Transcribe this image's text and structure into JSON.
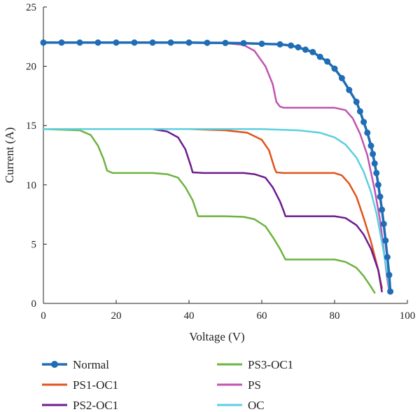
{
  "chart_data": {
    "type": "line",
    "title": "",
    "xlabel": "Voltage (V)",
    "ylabel": "Current (A)",
    "xlim": [
      0,
      100
    ],
    "ylim": [
      0,
      25
    ],
    "xticks": [
      "0",
      "20",
      "40",
      "60",
      "80",
      "100"
    ],
    "yticks": [
      "0",
      "5",
      "10",
      "15",
      "20",
      "25"
    ],
    "grid": false,
    "legend_position": "bottom",
    "series": [
      {
        "name": "Normal",
        "color": "#1f6db5",
        "marker": "circle",
        "points": [
          [
            0,
            22.0
          ],
          [
            5,
            22.0
          ],
          [
            10,
            22.0
          ],
          [
            15,
            22.0
          ],
          [
            20,
            22.0
          ],
          [
            25,
            22.0
          ],
          [
            30,
            22.0
          ],
          [
            35,
            22.0
          ],
          [
            40,
            22.0
          ],
          [
            45,
            21.98
          ],
          [
            50,
            21.97
          ],
          [
            55,
            21.95
          ],
          [
            60,
            21.9
          ],
          [
            65,
            21.85
          ],
          [
            68,
            21.75
          ],
          [
            70,
            21.6
          ],
          [
            72,
            21.4
          ],
          [
            74,
            21.2
          ],
          [
            76,
            20.8
          ],
          [
            78,
            20.4
          ],
          [
            80,
            19.8
          ],
          [
            82,
            19.0
          ],
          [
            84,
            18.0
          ],
          [
            86,
            17.0
          ],
          [
            87,
            16.2
          ],
          [
            88,
            15.3
          ],
          [
            89,
            14.4
          ],
          [
            90,
            13.3
          ],
          [
            90.5,
            12.6
          ],
          [
            91,
            11.8
          ],
          [
            91.5,
            11.0
          ],
          [
            92,
            10.0
          ],
          [
            92.5,
            9.0
          ],
          [
            93,
            7.9
          ],
          [
            93.5,
            6.7
          ],
          [
            94,
            5.3
          ],
          [
            94.5,
            3.9
          ],
          [
            95,
            2.4
          ],
          [
            95.3,
            1.0
          ]
        ]
      },
      {
        "name": "PS1-OC1",
        "color": "#e0541c",
        "marker": "none",
        "points": [
          [
            0,
            14.7
          ],
          [
            40,
            14.7
          ],
          [
            50,
            14.6
          ],
          [
            56,
            14.4
          ],
          [
            60,
            13.8
          ],
          [
            62,
            12.9
          ],
          [
            63.5,
            11.4
          ],
          [
            64,
            11.05
          ],
          [
            66,
            11.0
          ],
          [
            80,
            11.0
          ],
          [
            82,
            10.8
          ],
          [
            84,
            10.1
          ],
          [
            86,
            9.0
          ],
          [
            88,
            7.2
          ],
          [
            90,
            5.2
          ],
          [
            92,
            2.8
          ],
          [
            93,
            1.3
          ]
        ]
      },
      {
        "name": "PS2-OC1",
        "color": "#6e1c8f",
        "marker": "none",
        "points": [
          [
            0,
            14.7
          ],
          [
            30,
            14.7
          ],
          [
            34,
            14.5
          ],
          [
            37,
            14.0
          ],
          [
            39,
            13.0
          ],
          [
            40.5,
            11.6
          ],
          [
            41,
            11.05
          ],
          [
            44,
            11.0
          ],
          [
            55,
            11.0
          ],
          [
            58,
            10.9
          ],
          [
            61,
            10.6
          ],
          [
            63,
            9.8
          ],
          [
            65,
            8.6
          ],
          [
            66,
            7.8
          ],
          [
            66.5,
            7.35
          ],
          [
            70,
            7.35
          ],
          [
            80,
            7.35
          ],
          [
            83,
            7.2
          ],
          [
            86,
            6.6
          ],
          [
            88,
            5.8
          ],
          [
            90,
            4.6
          ],
          [
            92,
            2.8
          ],
          [
            93,
            1.0
          ]
        ]
      },
      {
        "name": "PS3-OC1",
        "color": "#6db33f",
        "marker": "none",
        "points": [
          [
            0,
            14.7
          ],
          [
            10,
            14.6
          ],
          [
            13,
            14.2
          ],
          [
            15,
            13.3
          ],
          [
            16.5,
            12.2
          ],
          [
            17.5,
            11.2
          ],
          [
            19,
            11.0
          ],
          [
            30,
            11.0
          ],
          [
            34,
            10.9
          ],
          [
            37,
            10.6
          ],
          [
            39,
            9.8
          ],
          [
            41,
            8.7
          ],
          [
            42,
            7.8
          ],
          [
            42.5,
            7.35
          ],
          [
            50,
            7.35
          ],
          [
            55,
            7.3
          ],
          [
            58,
            7.1
          ],
          [
            61,
            6.5
          ],
          [
            63,
            5.6
          ],
          [
            65,
            4.6
          ],
          [
            66.5,
            3.7
          ],
          [
            70,
            3.7
          ],
          [
            80,
            3.7
          ],
          [
            83,
            3.5
          ],
          [
            86,
            3.0
          ],
          [
            88,
            2.3
          ],
          [
            90,
            1.4
          ],
          [
            91,
            0.9
          ]
        ]
      },
      {
        "name": "PS",
        "color": "#c153b0",
        "marker": "none",
        "points": [
          [
            0,
            22.0
          ],
          [
            40,
            22.0
          ],
          [
            50,
            21.95
          ],
          [
            55,
            21.8
          ],
          [
            58,
            21.3
          ],
          [
            61,
            20.0
          ],
          [
            63,
            18.5
          ],
          [
            64,
            17.0
          ],
          [
            65,
            16.6
          ],
          [
            66,
            16.5
          ],
          [
            80,
            16.5
          ],
          [
            83,
            16.3
          ],
          [
            85,
            15.6
          ],
          [
            87,
            14.3
          ],
          [
            89,
            12.5
          ],
          [
            91,
            9.6
          ],
          [
            92.5,
            7.0
          ],
          [
            93.5,
            4.5
          ],
          [
            94.5,
            2.0
          ],
          [
            95,
            1.0
          ]
        ]
      },
      {
        "name": "OC",
        "color": "#5ccfdf",
        "marker": "none",
        "points": [
          [
            0,
            14.7
          ],
          [
            40,
            14.7
          ],
          [
            60,
            14.7
          ],
          [
            70,
            14.6
          ],
          [
            76,
            14.4
          ],
          [
            80,
            14.0
          ],
          [
            83,
            13.4
          ],
          [
            86,
            12.3
          ],
          [
            88,
            11.1
          ],
          [
            90,
            9.4
          ],
          [
            91.5,
            7.6
          ],
          [
            92.5,
            6.0
          ],
          [
            93.5,
            4.3
          ],
          [
            94.5,
            2.4
          ],
          [
            95.2,
            1.0
          ]
        ]
      }
    ]
  }
}
